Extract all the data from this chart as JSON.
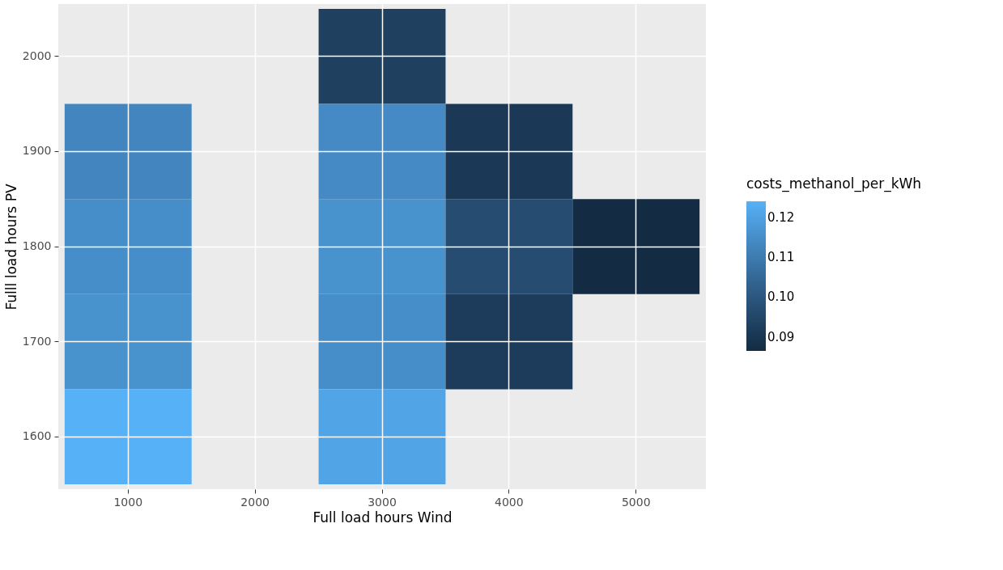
{
  "chart_data": {
    "type": "heatmap",
    "xlabel": "Full load hours Wind",
    "ylabel": "Fulll load hours PV",
    "legend_title": "costs_methanol_per_kWh",
    "categories": [
      "1000",
      "2000",
      "3000",
      "4000",
      "5000"
    ],
    "y_categories": [
      "2000",
      "1900",
      "1800",
      "1700",
      "1600"
    ],
    "cells": [
      [
        null,
        null,
        0.093,
        null,
        null
      ],
      [
        0.113,
        null,
        0.114,
        0.091,
        null
      ],
      [
        0.115,
        null,
        0.116,
        0.097,
        0.0865
      ],
      [
        0.116,
        null,
        0.115,
        0.092,
        null
      ],
      [
        0.124,
        null,
        0.121,
        null,
        null
      ]
    ],
    "clim": [
      0.0865,
      0.124
    ],
    "cticks": [
      0.09,
      {
        "value": 0.1,
        "label": "0.10"
      },
      0.11,
      0.12
    ],
    "grid": true
  }
}
